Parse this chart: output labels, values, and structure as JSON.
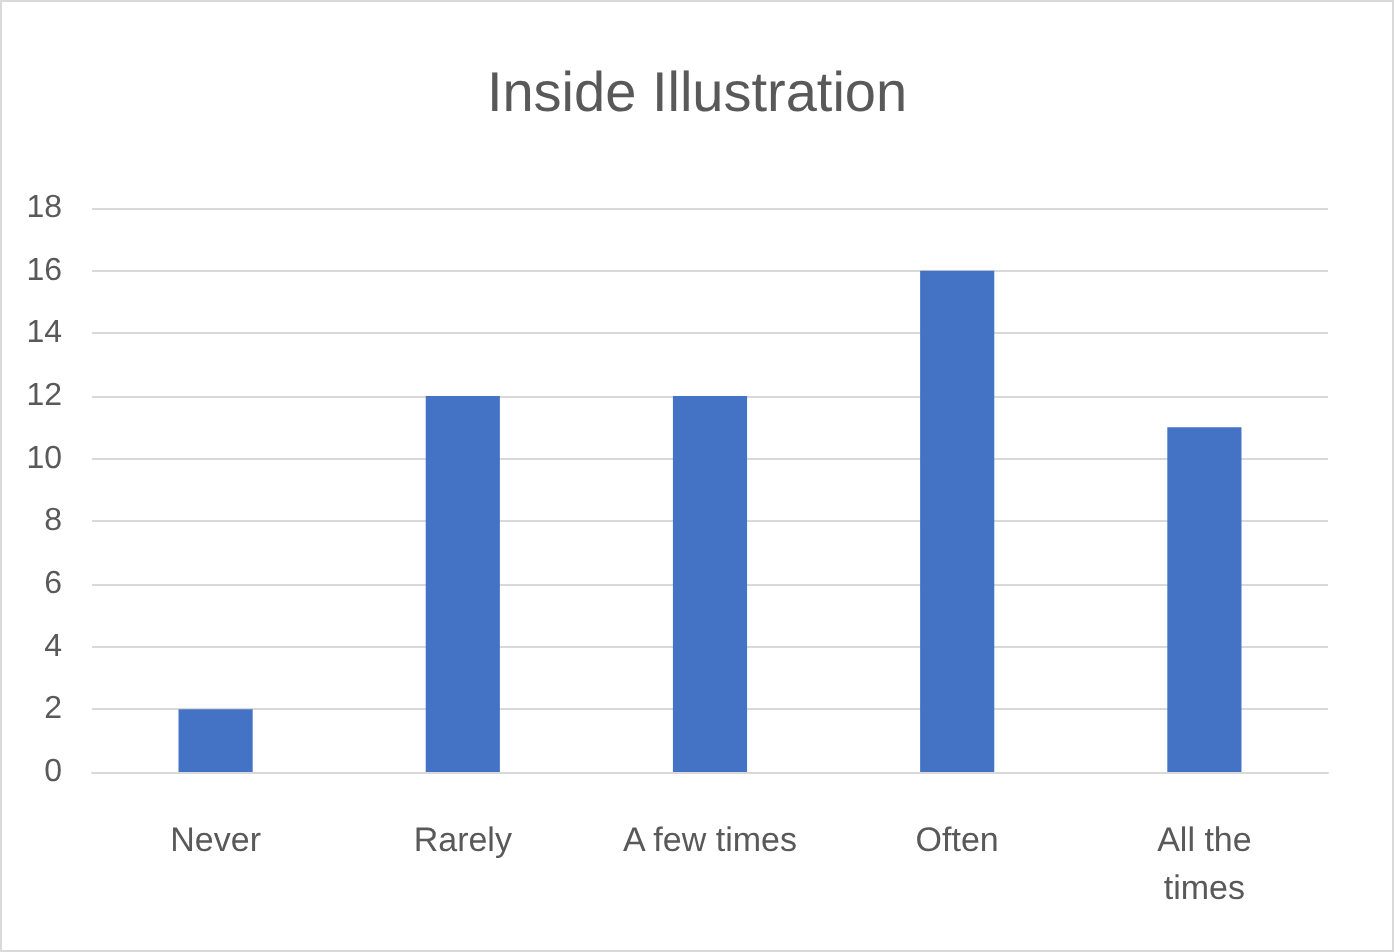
{
  "chart_data": {
    "type": "bar",
    "title": "Inside Illustration",
    "categories": [
      "Never",
      "Rarely",
      "A few times",
      "Often",
      "All the\ntimes"
    ],
    "values": [
      2,
      12,
      12,
      16,
      11
    ],
    "color": "#4472c4",
    "ylim": [
      0,
      18
    ],
    "yticks": [
      0,
      2,
      4,
      6,
      8,
      10,
      12,
      14,
      16,
      18
    ],
    "grid": true
  }
}
